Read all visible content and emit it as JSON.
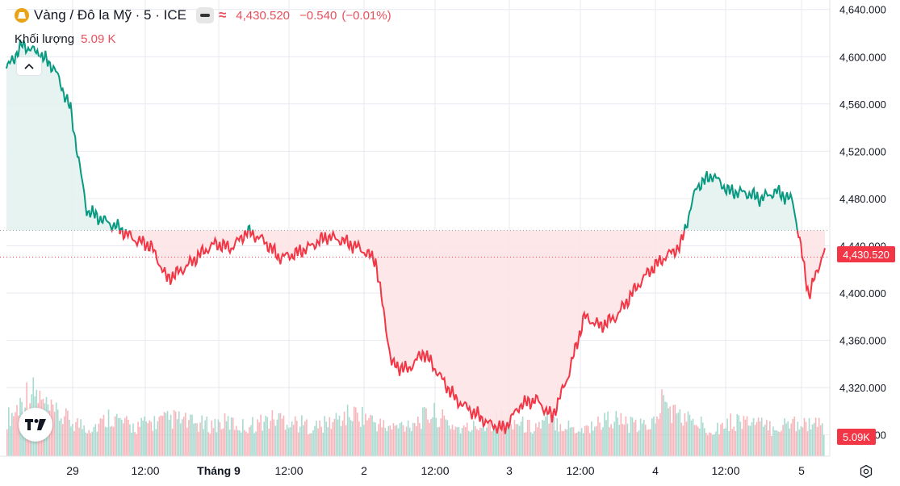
{
  "legend": {
    "title": "Vàng / Đô la Mỹ · 5 · ICE",
    "last": "4,430.520",
    "change": "−0.540",
    "change_pct": "(−0.01%)",
    "approx_symbol": "≈",
    "volume_label": "Khối lượng",
    "volume_value": "5.09 K"
  },
  "icons": {
    "symbol": "gold-bar-icon",
    "collapse": "chevron-up-icon",
    "logo": "tradingview-logo-icon",
    "settings": "gear-icon"
  },
  "colors": {
    "up": "#089981",
    "down": "#f23645",
    "up_fill": "#e3f2ee",
    "down_fill": "#fde4e6",
    "grid": "#e6e9ef"
  },
  "price_axis_labels": [
    "4,640.000",
    "4,600.000",
    "4,560.000",
    "4,520.000",
    "4,480.000",
    "4,440.000",
    "4,400.000",
    "4,360.000",
    "4,320.000",
    "4,280.000"
  ],
  "time_axis_labels": [
    "29",
    "12:00",
    "Tháng 9",
    "12:00",
    "2",
    "12:00",
    "3",
    "12:00",
    "4",
    "12:00",
    "5"
  ],
  "current_price_label": "4,430.520",
  "current_volume_label": "5.09K",
  "chart_data": {
    "type": "area",
    "baseline": 4453,
    "ylim": [
      4262,
      4648
    ],
    "last_price": 4430.52,
    "grid": true,
    "x": [
      "Aug 28 20:00",
      "Aug 29 00:00",
      "Aug 29 02:00",
      "Aug 29 04:00",
      "Aug 29 06:00",
      "Aug 29 08:00",
      "Aug 29 10:00",
      "Aug 29 12:00",
      "Aug 29 14:00",
      "Aug 29 16:00",
      "Aug 29 18:00",
      "Aug 29 20:00",
      "Aug 29 22:00",
      "Aug 30 00:00",
      "Aug 30 04:00",
      "Aug 30 08:00",
      "Aug 30 12:00",
      "Aug 30 16:00",
      "Aug 30 20:00",
      "Aug 31 00:00",
      "Aug 31 04:00",
      "Aug 31 08:00",
      "Aug 31 12:00",
      "Aug 31 16:00",
      "Aug 31 20:00",
      "Sep 1 00:00",
      "Sep 1 04:00",
      "Sep 1 08:00",
      "Sep 1 12:00",
      "Sep 1 16:00",
      "Sep 1 20:00",
      "Sep 2 00:00",
      "Sep 2 04:00",
      "Sep 2 08:00",
      "Sep 2 12:00",
      "Sep 2 16:00",
      "Sep 2 20:00",
      "Sep 3 00:00",
      "Sep 3 04:00",
      "Sep 3 08:00",
      "Sep 3 12:00",
      "Sep 3 16:00",
      "Sep 3 20:00",
      "Sep 4 00:00",
      "Sep 4 04:00",
      "Sep 4 08:00",
      "Sep 4 12:00",
      "Sep 4 16:00",
      "Sep 4 20:00",
      "Sep 5 00:00",
      "Sep 5 04:00",
      "Sep 5 08:00"
    ],
    "values": [
      4590,
      4610,
      4603,
      4590,
      4555,
      4470,
      4462,
      4455,
      4445,
      4440,
      4412,
      4420,
      4432,
      4442,
      4438,
      4452,
      4445,
      4430,
      4433,
      4440,
      4448,
      4444,
      4438,
      4428,
      4340,
      4335,
      4350,
      4330,
      4310,
      4300,
      4290,
      4285,
      4305,
      4310,
      4295,
      4330,
      4380,
      4372,
      4380,
      4400,
      4418,
      4430,
      4440,
      4490,
      4500,
      4486,
      4485,
      4480,
      4486,
      4478,
      4398,
      4438
    ],
    "volume": {
      "ylim": [
        0,
        150
      ],
      "values": [
        65,
        75,
        95,
        112,
        105,
        88,
        75,
        70,
        64,
        58,
        54,
        50,
        52,
        58,
        70,
        62,
        55,
        50,
        52,
        56,
        58,
        60,
        62,
        64,
        60,
        56,
        55,
        53,
        54,
        56,
        58,
        54,
        51,
        53,
        56,
        60,
        63,
        65,
        62,
        58,
        55,
        52,
        50,
        53,
        58,
        64,
        68,
        72,
        70,
        66,
        58,
        52,
        48,
        50,
        54,
        58,
        62,
        68,
        72,
        64,
        56,
        50,
        46,
        48,
        52,
        56,
        60,
        64,
        66,
        60,
        54,
        50,
        52,
        56,
        62,
        58,
        52,
        48,
        46,
        50,
        55,
        60,
        65,
        62,
        56,
        52,
        50,
        54,
        58,
        95,
        82,
        70,
        66,
        60,
        55,
        50,
        48,
        52,
        56,
        60,
        62,
        58,
        55,
        50,
        48,
        52,
        54,
        58,
        60,
        56,
        52,
        50
      ]
    }
  }
}
